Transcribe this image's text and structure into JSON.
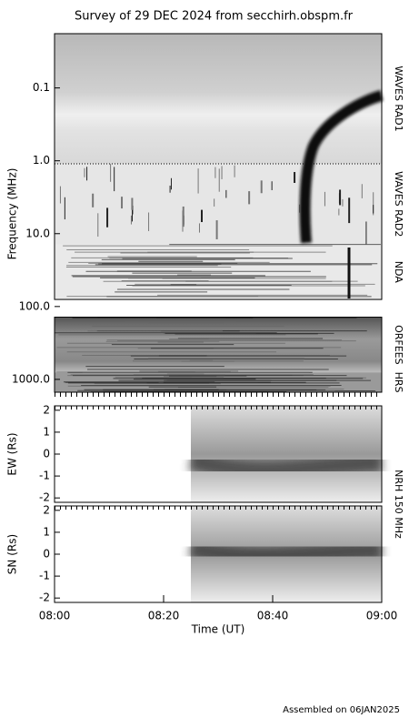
{
  "chart_data": [
    {
      "type": "spectrogram",
      "title": "Survey of 29 DEC 2024 from secchirh.obspm.fr",
      "y_label": "Frequency (MHz)",
      "log_scale": true,
      "ylim": [
        0.018,
        1500
      ],
      "yticks": [
        0.1,
        {
          "value": 1,
          "label": "1.0"
        },
        {
          "value": 10,
          "label": "10.0"
        },
        {
          "value": 100,
          "label": "100.0"
        },
        {
          "value": 1000,
          "label": "1000.0"
        }
      ],
      "xlim": [
        "08:00",
        "09:00"
      ],
      "panels": [
        {
          "label": "WAVES RAD1",
          "range": [
            0.018,
            1.1
          ]
        },
        {
          "label": "WAVES RAD2",
          "range": [
            1.1,
            14
          ]
        },
        {
          "label": "NDA",
          "range": [
            14,
            80
          ]
        },
        {
          "label": "ORFEES",
          "range": [
            140,
            800
          ]
        },
        {
          "label": "HRS",
          "range": [
            800,
            1500
          ]
        }
      ]
    },
    {
      "type": "heatmap",
      "y_label": "EW (Rs)",
      "instrument": "NRH 150 MHz",
      "ylim": [
        -2.2,
        2.2
      ],
      "yticks": [
        -2,
        -1,
        0,
        1,
        2
      ],
      "xlim": [
        "08:00",
        "09:00"
      ],
      "x_start": "08:25"
    },
    {
      "type": "heatmap",
      "y_label": "SN (Rs)",
      "ylim": [
        -2.2,
        2.2
      ],
      "yticks": [
        -2,
        -1,
        0,
        1,
        2
      ],
      "xlim": [
        "08:00",
        "09:00"
      ],
      "x_start": "08:25",
      "x_label": "Time (UT)",
      "xticks": [
        "08:00",
        "08:20",
        "08:40",
        "09:00"
      ],
      "footer": "Assembled on 06JAN2025"
    }
  ]
}
